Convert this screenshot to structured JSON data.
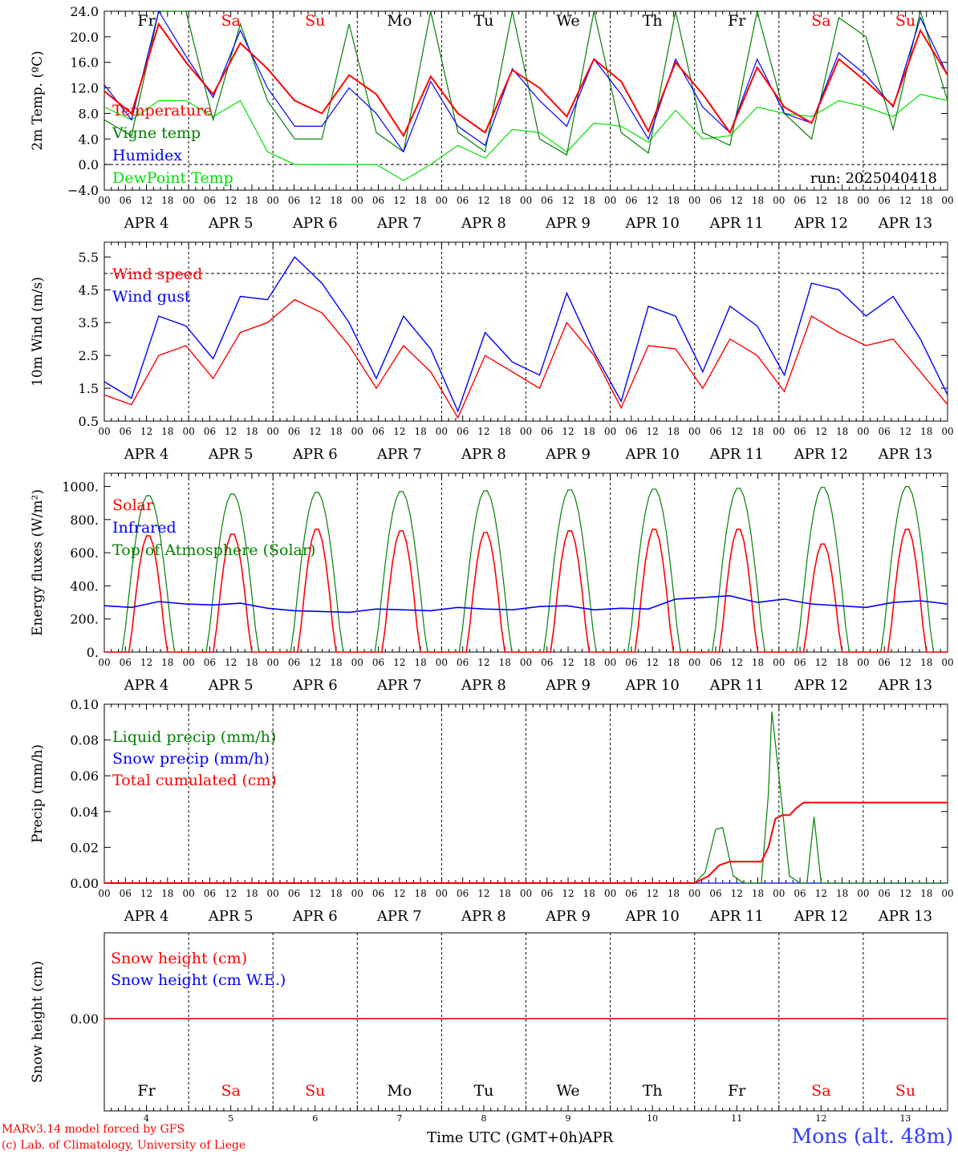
{
  "days": [
    {
      "abbr": "Fr",
      "num": "4",
      "label": "APR  4",
      "weekend": false
    },
    {
      "abbr": "Sa",
      "num": "5",
      "label": "APR  5",
      "weekend": true
    },
    {
      "abbr": "Su",
      "num": "6",
      "label": "APR  6",
      "weekend": true
    },
    {
      "abbr": "Mo",
      "num": "7",
      "label": "APR  7",
      "weekend": false
    },
    {
      "abbr": "Tu",
      "num": "8",
      "label": "APR  8",
      "weekend": false
    },
    {
      "abbr": "We",
      "num": "9",
      "label": "APR  9",
      "weekend": false
    },
    {
      "abbr": "Th",
      "num": "10",
      "label": "APR 10",
      "weekend": false
    },
    {
      "abbr": "Fr",
      "num": "11",
      "label": "APR 11",
      "weekend": false
    },
    {
      "abbr": "Sa",
      "num": "12",
      "label": "APR 12",
      "weekend": true
    },
    {
      "abbr": "Su",
      "num": "13",
      "label": "APR 13",
      "weekend": true
    }
  ],
  "hour_ticks": [
    "00",
    "06",
    "12",
    "18"
  ],
  "colors": {
    "red": "#ff0000",
    "blue": "#0000ff",
    "green": "#008000",
    "lightgreen": "#00e000",
    "axis": "#000000"
  },
  "footer": {
    "credit1": "MARv3.14 model forced by GFS",
    "credit2": "(c) Lab. of Climatology, University of Liege",
    "xlabel": "Time UTC (GMT+0h)",
    "month": "APR",
    "station": "Mons (alt. 48m)"
  },
  "chart_data": [
    {
      "type": "line",
      "ylabel": "2m Temp. (ºC)",
      "ylim": [
        -4,
        24
      ],
      "yticks": [
        "24.0",
        "20.0",
        "16.0",
        "12.0",
        "8.0",
        "4.0",
        "0.0",
        "−4.0"
      ],
      "ytick_values": [
        24,
        20,
        16,
        12,
        8,
        4,
        0,
        -4
      ],
      "dashed_y": 0,
      "annotation": "run: 2025040418",
      "series": [
        {
          "name": "Temperature",
          "color": "red",
          "values": [
            11.5,
            8,
            22,
            16,
            11,
            19,
            15,
            10,
            8,
            14,
            11,
            4.5,
            13.8,
            8,
            5,
            14.8,
            12,
            7.5,
            16.5,
            13,
            5.2,
            16,
            11,
            5,
            15.2,
            9,
            6.5,
            16.5,
            13,
            9.2,
            21,
            14
          ]
        },
        {
          "name": "Vigne temp",
          "color": "green",
          "values": [
            7,
            4.5,
            24,
            24,
            7,
            22,
            10,
            4,
            4,
            22,
            5,
            2,
            24,
            5,
            2,
            24,
            4,
            1.5,
            24,
            5,
            1.8,
            24,
            5,
            3,
            24,
            8,
            4,
            23,
            20,
            5.5,
            24,
            10
          ]
        },
        {
          "name": "Humidex",
          "color": "blue",
          "values": [
            12.5,
            7,
            24,
            17,
            10.5,
            21,
            12,
            6,
            6,
            12,
            8,
            2,
            13,
            6,
            3,
            15,
            10,
            6,
            16.5,
            11,
            4,
            16.5,
            9,
            5,
            16.5,
            8,
            6.5,
            17.5,
            14,
            9,
            23,
            14
          ]
        },
        {
          "name": "DewPoint Temp",
          "color": "lightgreen",
          "values": [
            9,
            7,
            10,
            10,
            7.5,
            10,
            2,
            0,
            0,
            0,
            0,
            -2.5,
            0,
            3,
            1,
            5.5,
            5,
            2,
            6.5,
            6,
            3.5,
            8.5,
            4,
            4.5,
            9,
            8,
            7.5,
            10,
            9,
            7.5,
            11,
            10
          ]
        }
      ]
    },
    {
      "type": "line",
      "ylabel": "10m Wind (m/s)",
      "ylim": [
        0.5,
        5.95
      ],
      "yticks": [
        "5.5",
        "4.5",
        "3.5",
        "2.5",
        "1.5",
        "0.5"
      ],
      "ytick_values": [
        5.5,
        4.5,
        3.5,
        2.5,
        1.5,
        0.5
      ],
      "dashed_y": 5.0,
      "series": [
        {
          "name": "Wind speed",
          "color": "red",
          "values": [
            1.3,
            1,
            2.5,
            2.8,
            1.8,
            3.2,
            3.5,
            4.2,
            3.8,
            2.8,
            1.5,
            2.8,
            2,
            0.6,
            2.5,
            2,
            1.5,
            3.5,
            2.5,
            0.9,
            2.8,
            2.7,
            1.5,
            3,
            2.5,
            1.4,
            3.7,
            3.2,
            2.8,
            3,
            2,
            1
          ]
        },
        {
          "name": "Wind gust",
          "color": "blue",
          "values": [
            1.7,
            1.2,
            3.7,
            3.4,
            2.4,
            4.3,
            4.2,
            5.5,
            4.7,
            3.5,
            1.8,
            3.7,
            2.7,
            0.8,
            3.2,
            2.3,
            1.9,
            4.4,
            2.6,
            1.1,
            4,
            3.7,
            2,
            4,
            3.4,
            1.9,
            4.7,
            4.5,
            3.7,
            4.3,
            3,
            1.3
          ]
        }
      ]
    },
    {
      "type": "line",
      "ylabel": "Energy fluxes (W/m²)",
      "ylim": [
        0,
        1080
      ],
      "yticks": [
        "1000.",
        "800.",
        "600.",
        "400.",
        "200.",
        "0."
      ],
      "ytick_values": [
        1000,
        800,
        600,
        400,
        200,
        0
      ],
      "series": [
        {
          "name": "Solar",
          "color": "red",
          "daily_peak": [
            710,
            720,
            750,
            740,
            730,
            740,
            750,
            750,
            660,
            750
          ]
        },
        {
          "name": "Infrared",
          "color": "blue",
          "values": [
            280,
            270,
            305,
            290,
            285,
            295,
            265,
            250,
            245,
            240,
            260,
            255,
            250,
            270,
            260,
            255,
            275,
            280,
            255,
            265,
            260,
            320,
            330,
            340,
            300,
            320,
            290,
            280,
            270,
            300,
            310,
            290
          ]
        },
        {
          "name": "Top of Atmosphere (Solar)",
          "color": "green",
          "daily_peak": [
            950,
            960,
            970,
            975,
            980,
            985,
            990,
            995,
            1000,
            1005
          ]
        }
      ]
    },
    {
      "type": "line",
      "ylabel": "Precip (mm/h)",
      "ylim": [
        0,
        0.1
      ],
      "yticks": [
        "0.10",
        "0.08",
        "0.06",
        "0.04",
        "0.02",
        "0.00"
      ],
      "ytick_values": [
        0.1,
        0.08,
        0.06,
        0.04,
        0.02,
        0
      ],
      "series": [
        {
          "name": "Liquid precip (mm/h)",
          "color": "green",
          "points": [
            [
              0,
              0
            ],
            [
              168,
              0
            ],
            [
              171,
              0.006
            ],
            [
              174,
              0.03
            ],
            [
              176,
              0.031
            ],
            [
              179,
              0.004
            ],
            [
              182,
              0
            ],
            [
              187,
              0
            ],
            [
              189,
              0.05
            ],
            [
              190,
              0.096
            ],
            [
              192,
              0.06
            ],
            [
              195,
              0.004
            ],
            [
              198,
              0
            ],
            [
              200,
              0
            ],
            [
              202,
              0.037
            ],
            [
              204,
              0
            ],
            [
              240,
              0
            ]
          ]
        },
        {
          "name": "Snow precip (mm/h)",
          "color": "blue",
          "points": [
            [
              0,
              0
            ],
            [
              240,
              0
            ]
          ]
        },
        {
          "name": "Total cumulated (cm)",
          "color": "red",
          "points": [
            [
              0,
              0
            ],
            [
              168,
              0
            ],
            [
              172,
              0.004
            ],
            [
              175,
              0.01
            ],
            [
              178,
              0.012
            ],
            [
              187,
              0.012
            ],
            [
              189,
              0.02
            ],
            [
              191,
              0.036
            ],
            [
              193,
              0.038
            ],
            [
              195,
              0.038
            ],
            [
              197,
              0.042
            ],
            [
              199,
              0.045
            ],
            [
              240,
              0.045
            ]
          ]
        }
      ]
    },
    {
      "type": "line",
      "ylabel": "Snow height (cm)",
      "yticks": [
        "0.00"
      ],
      "ytick_values": [
        0
      ],
      "series": [
        {
          "name": "Snow height (cm)",
          "color": "red",
          "values": [
            0,
            0
          ]
        },
        {
          "name": "Snow height (cm W.E.)",
          "color": "blue",
          "values": [
            0,
            0
          ]
        }
      ]
    }
  ]
}
